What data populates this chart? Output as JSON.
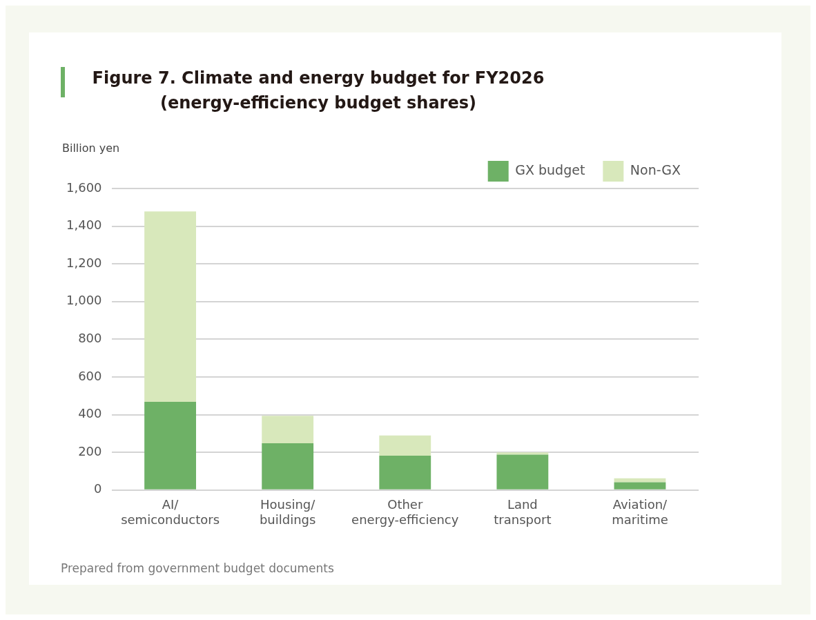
{
  "chart_data": {
    "type": "bar",
    "stacked": true,
    "title": "Figure 7. Climate and energy budget for FY2026 (energy-efficiency budget shares)",
    "ylabel": "Billion yen",
    "categories": [
      "AI/semiconductors",
      "Housing/buildings",
      "Other energy-efficiency",
      "Land transport",
      "Aviation/maritime"
    ],
    "series": [
      {
        "name": "GX budget",
        "color": "#6eb166",
        "values": [
          468,
          248,
          182,
          188,
          41
        ]
      },
      {
        "name": "Non-GX",
        "color": "#d8e8bb",
        "values": [
          1010,
          146,
          108,
          12,
          21
        ]
      }
    ],
    "ylim": [
      0,
      1600
    ],
    "yticks": [
      0,
      200,
      400,
      600,
      800,
      {
        "value": 1000,
        "label": "1,000"
      },
      {
        "value": 1200,
        "label": "1,200"
      },
      {
        "value": 1400,
        "label": "1,400"
      },
      {
        "value": 1600,
        "label": "1,600"
      }
    ],
    "grid": "y",
    "legend": "top right",
    "annotations": [
      "Prepared from government budget documents"
    ]
  }
}
